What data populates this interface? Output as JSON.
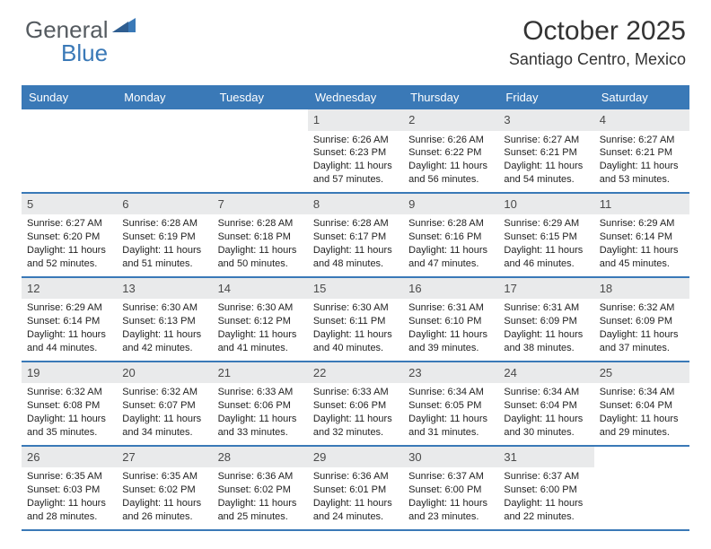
{
  "brand": {
    "general": "General",
    "blue": "Blue"
  },
  "title": {
    "month": "October 2025",
    "location": "Santiago Centro, Mexico"
  },
  "colors": {
    "header_bg": "#3a79b7",
    "daynum_bg": "#e9eaeb",
    "rule": "#3a79b7",
    "text": "#333333",
    "brand_grey": "#555b60",
    "brand_blue": "#3a79b7",
    "page_bg": "#ffffff"
  },
  "days_of_week": [
    "Sunday",
    "Monday",
    "Tuesday",
    "Wednesday",
    "Thursday",
    "Friday",
    "Saturday"
  ],
  "labels": {
    "sunrise": "Sunrise:",
    "sunset": "Sunset:",
    "daylight": "Daylight:"
  },
  "weeks": [
    [
      null,
      null,
      null,
      {
        "n": "1",
        "sunrise": "6:26 AM",
        "sunset": "6:23 PM",
        "daylight": "11 hours and 57 minutes."
      },
      {
        "n": "2",
        "sunrise": "6:26 AM",
        "sunset": "6:22 PM",
        "daylight": "11 hours and 56 minutes."
      },
      {
        "n": "3",
        "sunrise": "6:27 AM",
        "sunset": "6:21 PM",
        "daylight": "11 hours and 54 minutes."
      },
      {
        "n": "4",
        "sunrise": "6:27 AM",
        "sunset": "6:21 PM",
        "daylight": "11 hours and 53 minutes."
      }
    ],
    [
      {
        "n": "5",
        "sunrise": "6:27 AM",
        "sunset": "6:20 PM",
        "daylight": "11 hours and 52 minutes."
      },
      {
        "n": "6",
        "sunrise": "6:28 AM",
        "sunset": "6:19 PM",
        "daylight": "11 hours and 51 minutes."
      },
      {
        "n": "7",
        "sunrise": "6:28 AM",
        "sunset": "6:18 PM",
        "daylight": "11 hours and 50 minutes."
      },
      {
        "n": "8",
        "sunrise": "6:28 AM",
        "sunset": "6:17 PM",
        "daylight": "11 hours and 48 minutes."
      },
      {
        "n": "9",
        "sunrise": "6:28 AM",
        "sunset": "6:16 PM",
        "daylight": "11 hours and 47 minutes."
      },
      {
        "n": "10",
        "sunrise": "6:29 AM",
        "sunset": "6:15 PM",
        "daylight": "11 hours and 46 minutes."
      },
      {
        "n": "11",
        "sunrise": "6:29 AM",
        "sunset": "6:14 PM",
        "daylight": "11 hours and 45 minutes."
      }
    ],
    [
      {
        "n": "12",
        "sunrise": "6:29 AM",
        "sunset": "6:14 PM",
        "daylight": "11 hours and 44 minutes."
      },
      {
        "n": "13",
        "sunrise": "6:30 AM",
        "sunset": "6:13 PM",
        "daylight": "11 hours and 42 minutes."
      },
      {
        "n": "14",
        "sunrise": "6:30 AM",
        "sunset": "6:12 PM",
        "daylight": "11 hours and 41 minutes."
      },
      {
        "n": "15",
        "sunrise": "6:30 AM",
        "sunset": "6:11 PM",
        "daylight": "11 hours and 40 minutes."
      },
      {
        "n": "16",
        "sunrise": "6:31 AM",
        "sunset": "6:10 PM",
        "daylight": "11 hours and 39 minutes."
      },
      {
        "n": "17",
        "sunrise": "6:31 AM",
        "sunset": "6:09 PM",
        "daylight": "11 hours and 38 minutes."
      },
      {
        "n": "18",
        "sunrise": "6:32 AM",
        "sunset": "6:09 PM",
        "daylight": "11 hours and 37 minutes."
      }
    ],
    [
      {
        "n": "19",
        "sunrise": "6:32 AM",
        "sunset": "6:08 PM",
        "daylight": "11 hours and 35 minutes."
      },
      {
        "n": "20",
        "sunrise": "6:32 AM",
        "sunset": "6:07 PM",
        "daylight": "11 hours and 34 minutes."
      },
      {
        "n": "21",
        "sunrise": "6:33 AM",
        "sunset": "6:06 PM",
        "daylight": "11 hours and 33 minutes."
      },
      {
        "n": "22",
        "sunrise": "6:33 AM",
        "sunset": "6:06 PM",
        "daylight": "11 hours and 32 minutes."
      },
      {
        "n": "23",
        "sunrise": "6:34 AM",
        "sunset": "6:05 PM",
        "daylight": "11 hours and 31 minutes."
      },
      {
        "n": "24",
        "sunrise": "6:34 AM",
        "sunset": "6:04 PM",
        "daylight": "11 hours and 30 minutes."
      },
      {
        "n": "25",
        "sunrise": "6:34 AM",
        "sunset": "6:04 PM",
        "daylight": "11 hours and 29 minutes."
      }
    ],
    [
      {
        "n": "26",
        "sunrise": "6:35 AM",
        "sunset": "6:03 PM",
        "daylight": "11 hours and 28 minutes."
      },
      {
        "n": "27",
        "sunrise": "6:35 AM",
        "sunset": "6:02 PM",
        "daylight": "11 hours and 26 minutes."
      },
      {
        "n": "28",
        "sunrise": "6:36 AM",
        "sunset": "6:02 PM",
        "daylight": "11 hours and 25 minutes."
      },
      {
        "n": "29",
        "sunrise": "6:36 AM",
        "sunset": "6:01 PM",
        "daylight": "11 hours and 24 minutes."
      },
      {
        "n": "30",
        "sunrise": "6:37 AM",
        "sunset": "6:00 PM",
        "daylight": "11 hours and 23 minutes."
      },
      {
        "n": "31",
        "sunrise": "6:37 AM",
        "sunset": "6:00 PM",
        "daylight": "11 hours and 22 minutes."
      },
      null
    ]
  ]
}
